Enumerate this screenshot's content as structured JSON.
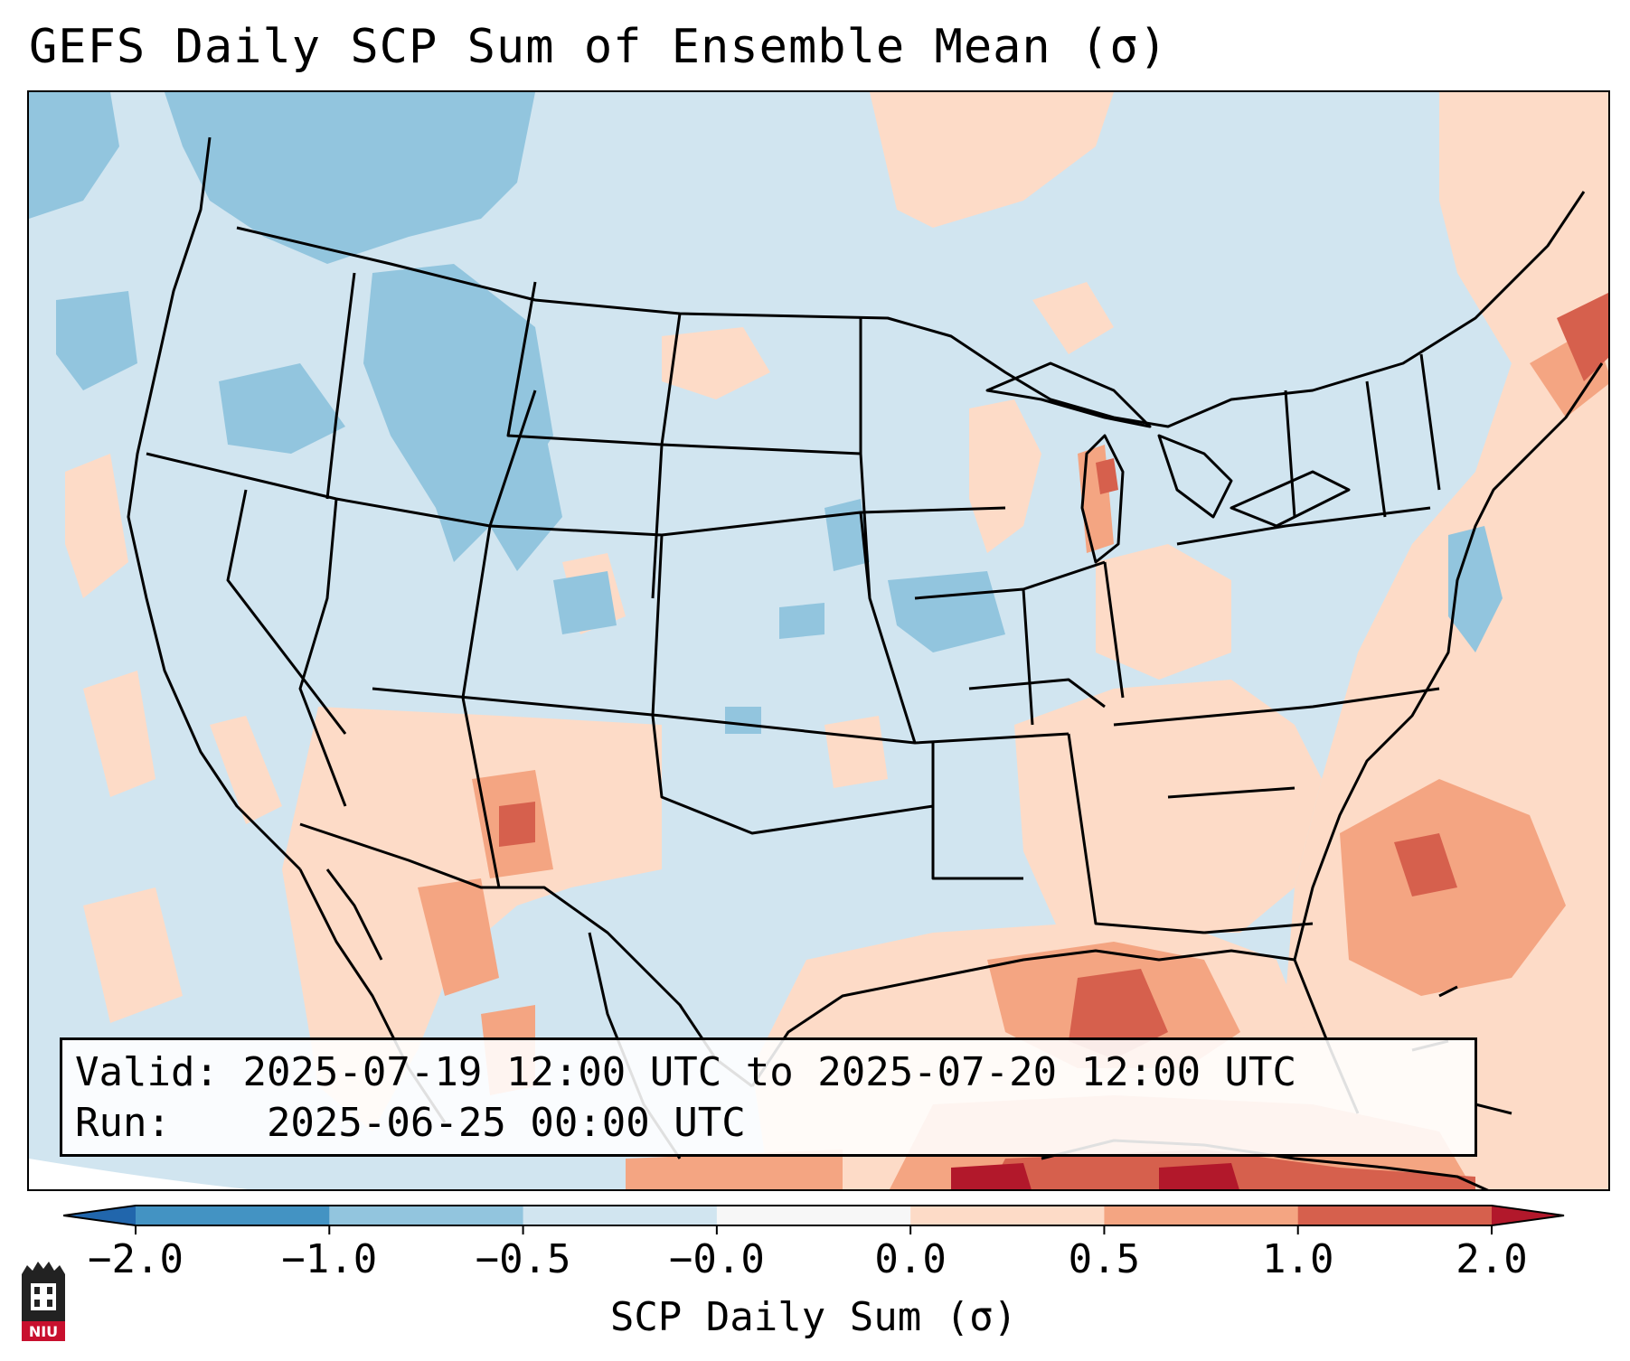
{
  "title": "GEFS Daily SCP Sum of Ensemble Mean (σ)",
  "map": {
    "region": "contiguous-united-states",
    "variable": "SCP daily sum anomaly",
    "units": "σ",
    "colors": {
      "below_-1.0": "#4393c3",
      "-1.0_-0.5": "#92c5de",
      "-0.5_0": "#d1e5f0",
      "neutral": "#f7f7f7",
      "0_0.5": "#fddbc7",
      "0.5_1.0": "#f4a582",
      "1.0_2.0": "#d6604d",
      "above_2.0": "#b2182b"
    }
  },
  "info": {
    "valid_label": "Valid:",
    "valid_value": "2025-07-19 12:00 UTC to 2025-07-20 12:00 UTC",
    "run_label": "Run:",
    "run_value": "2025-06-25 00:00 UTC"
  },
  "colorbar": {
    "ticks": [
      "−2.0",
      "−1.0",
      "−0.5",
      "−0.0",
      "0.0",
      "0.5",
      "1.0",
      "2.0"
    ],
    "label": "SCP Daily Sum (σ)",
    "colors": [
      "#2166ac",
      "#4393c3",
      "#92c5de",
      "#d1e5f0",
      "#f7f7f7",
      "#fddbc7",
      "#f4a582",
      "#d6604d",
      "#b2182b"
    ]
  },
  "logo": {
    "name": "niu-logo",
    "text": "NIU"
  }
}
